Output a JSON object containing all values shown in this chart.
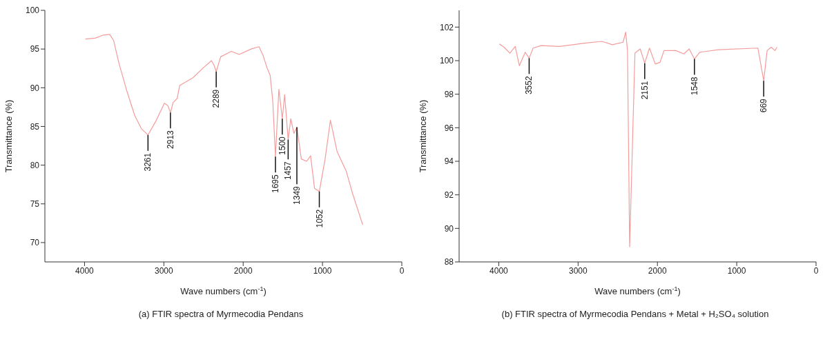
{
  "chart_data": [
    {
      "type": "line",
      "title": "(a) FTIR spectra of Myrmecodia Pendans",
      "xlabel": "Wave numbers (cm$^{-1}$)",
      "ylabel": "Transmittance (%)",
      "xlim": [
        4500,
        0
      ],
      "xticks": [
        4000,
        3000,
        2000,
        1000,
        0
      ],
      "ylim": [
        67.5,
        100
      ],
      "yticks": [
        70,
        75,
        80,
        85,
        90,
        95,
        100
      ],
      "grid": false,
      "legend": false,
      "marker": "none",
      "line_style": "solid",
      "series": [
        {
          "color": "#f59b9b",
          "x": [
            3990,
            3867,
            3767,
            3683,
            3633,
            3567,
            3467,
            3367,
            3283,
            3200,
            3100,
            2993,
            2950,
            2917,
            2883,
            2833,
            2800,
            2733,
            2633,
            2500,
            2400,
            2367,
            2340,
            2283,
            2150,
            2050,
            1900,
            1800,
            1750,
            1700,
            1660,
            1627,
            1593,
            1550,
            1507,
            1477,
            1433,
            1400,
            1360,
            1323,
            1267,
            1200,
            1150,
            1100,
            1040,
            967,
            900,
            817,
            750,
            700,
            617,
            493
          ],
          "values": [
            96.3,
            96.4,
            96.8,
            96.9,
            96.1,
            93.2,
            89.6,
            86.4,
            84.7,
            83.9,
            85.7,
            88.0,
            87.7,
            86.8,
            88.1,
            88.6,
            90.3,
            90.7,
            91.3,
            92.6,
            93.5,
            92.9,
            92.1,
            94.0,
            94.7,
            94.3,
            95.0,
            95.3,
            94.2,
            92.6,
            91.6,
            88.3,
            81.1,
            89.8,
            86.0,
            89.1,
            83.3,
            86.0,
            84.1,
            84.9,
            80.8,
            80.5,
            81.2,
            77.0,
            76.6,
            80.8,
            85.8,
            81.8,
            80.3,
            79.2,
            76.2,
            72.3
          ]
        }
      ],
      "annotations": [
        {
          "text": "3261",
          "x": 3200,
          "y": 83.9
        },
        {
          "text": "2913",
          "x": 2917,
          "y": 86.8
        },
        {
          "text": "2289",
          "x": 2340,
          "y": 92.1
        },
        {
          "text": "1695",
          "x": 1593,
          "y": 81.1
        },
        {
          "text": "1500",
          "x": 1507,
          "y": 86.0
        },
        {
          "text": "1457",
          "x": 1433,
          "y": 83.3
        },
        {
          "text": "1349",
          "x": 1323,
          "y": 84.9
        },
        {
          "text": "1052",
          "x": 1040,
          "y": 76.6
        }
      ]
    },
    {
      "type": "line",
      "title": "(b) FTIR spectra of Myrmecodia Pendans + Metal + H₂SO₄ solution",
      "xlabel": "Wave numbers (cm$^{-1}$)",
      "ylabel": "Transmittance (%)",
      "xlim": [
        4500,
        0
      ],
      "xticks": [
        4000,
        3000,
        2000,
        1000,
        0
      ],
      "ylim": [
        88,
        103
      ],
      "yticks": [
        88,
        90,
        92,
        94,
        96,
        98,
        100,
        102
      ],
      "grid": false,
      "legend": false,
      "marker": "none",
      "line_style": "solid",
      "series": [
        {
          "color": "#f59b9b",
          "x": [
            3993,
            3933,
            3860,
            3793,
            3740,
            3667,
            3617,
            3567,
            3467,
            3233,
            2900,
            2700,
            2567,
            2433,
            2400,
            2377,
            2350,
            2317,
            2283,
            2217,
            2160,
            2100,
            2027,
            1967,
            1917,
            1767,
            1667,
            1600,
            1533,
            1467,
            1233,
            733,
            660,
            617,
            567,
            517,
            493
          ],
          "values": [
            101.0,
            100.8,
            100.45,
            100.85,
            99.7,
            100.5,
            100.15,
            100.75,
            100.9,
            100.85,
            101.05,
            101.15,
            100.95,
            101.1,
            101.7,
            100.6,
            88.9,
            94.6,
            100.45,
            100.7,
            99.85,
            100.75,
            99.8,
            99.9,
            100.6,
            100.6,
            100.4,
            100.7,
            100.1,
            100.5,
            100.65,
            100.75,
            98.8,
            100.6,
            100.8,
            100.6,
            100.8
          ]
        }
      ],
      "annotations": [
        {
          "text": "3552",
          "x": 3617,
          "y": 100.15
        },
        {
          "text": "2151",
          "x": 2160,
          "y": 99.85
        },
        {
          "text": "1548",
          "x": 1533,
          "y": 100.1
        },
        {
          "text": "669",
          "x": 660,
          "y": 98.8
        }
      ]
    }
  ]
}
